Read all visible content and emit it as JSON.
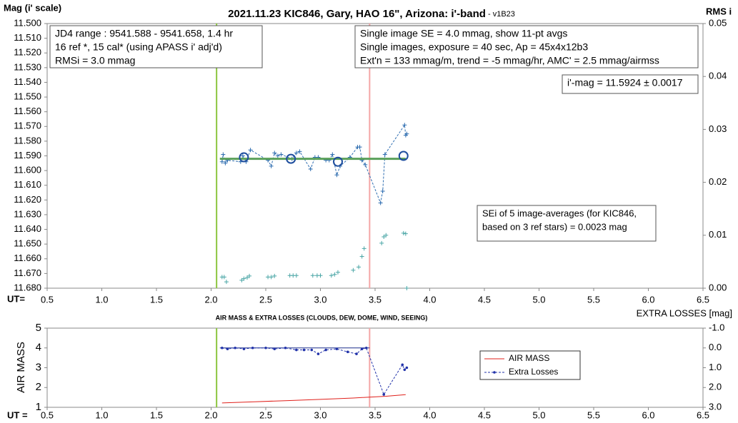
{
  "chart_data": [
    {
      "type": "line",
      "title": "2021.11.23 KIC846, Gary, HAO 16\", Arizona: i'-band",
      "subtitle": " - v1B23",
      "ylabel": "Mag (i' scale)",
      "y2label": "RMS i",
      "xlabel": "UT=",
      "xlim": [
        0.5,
        6.5
      ],
      "xticks": [
        0.5,
        {
          "value": 1,
          "label": "1.0"
        },
        1.5,
        {
          "value": 2,
          "label": "2.0"
        },
        2.5,
        {
          "value": 3,
          "label": "3.0"
        },
        3.5,
        {
          "value": 4,
          "label": "4.0"
        },
        4.5,
        {
          "value": 5,
          "label": "5.0"
        },
        5.5,
        {
          "value": 6,
          "label": "6.0"
        },
        6.5
      ],
      "ylim": [
        11.68,
        11.5
      ],
      "yticks": [
        {
          "value": 11.5,
          "label": "11.500"
        },
        {
          "value": 11.51,
          "label": "11.510"
        },
        {
          "value": 11.52,
          "label": "11.520"
        },
        {
          "value": 11.53,
          "label": "11.530"
        },
        {
          "value": 11.54,
          "label": "11.540"
        },
        {
          "value": 11.55,
          "label": "11.550"
        },
        {
          "value": 11.56,
          "label": "11.560"
        },
        {
          "value": 11.57,
          "label": "11.570"
        },
        {
          "value": 11.58,
          "label": "11.580"
        },
        {
          "value": 11.59,
          "label": "11.590"
        },
        {
          "value": 11.6,
          "label": "11.600"
        },
        {
          "value": 11.61,
          "label": "11.610"
        },
        {
          "value": 11.62,
          "label": "11.620"
        },
        {
          "value": 11.63,
          "label": "11.630"
        },
        {
          "value": 11.64,
          "label": "11.640"
        },
        {
          "value": 11.65,
          "label": "11.650"
        },
        {
          "value": 11.66,
          "label": "11.660"
        },
        {
          "value": 11.67,
          "label": "11.670"
        },
        {
          "value": 11.68,
          "label": "11.680"
        }
      ],
      "y2lim": [
        0,
        0.05
      ],
      "y2ticks": [
        {
          "value": 0,
          "label": "0.00"
        },
        0.01,
        0.02,
        0.03,
        0.04,
        0.05
      ],
      "vlines": [
        {
          "value": 2.05,
          "color": "#8cc63f"
        },
        {
          "value": 3.45,
          "color": "#f4a6a6"
        }
      ],
      "series": [
        {
          "color": "#2e6db0",
          "dash": true,
          "marker": "plus",
          "x": [
            2.1,
            2.11,
            2.13,
            2.15,
            2.27,
            2.29,
            2.32,
            2.36,
            2.52,
            2.55,
            2.58,
            2.61,
            2.64,
            2.74,
            2.78,
            2.81,
            2.91,
            2.95,
            2.98,
            3.05,
            3.08,
            3.11,
            3.15,
            3.18,
            3.27,
            3.34,
            3.36,
            3.38,
            3.41,
            3.55,
            3.57,
            3.59,
            3.77,
            3.78,
            3.79
          ],
          "values": [
            11.594,
            11.589,
            11.595,
            11.593,
            11.594,
            11.59,
            11.594,
            11.586,
            11.593,
            11.597,
            11.588,
            11.59,
            11.589,
            11.592,
            11.588,
            11.587,
            11.599,
            11.591,
            11.591,
            11.593,
            11.593,
            11.589,
            11.603,
            11.597,
            11.591,
            11.584,
            11.584,
            11.593,
            11.596,
            11.622,
            11.614,
            11.589,
            11.569,
            11.576,
            11.575
          ]
        },
        {
          "color": "#5aa05a",
          "width": 3,
          "x": [
            2.08,
            3.78
          ],
          "values": [
            11.592,
            11.592
          ]
        },
        {
          "color": "#1f4e9e",
          "line": false,
          "marker": "circle",
          "x": [
            2.3,
            2.73,
            3.16,
            3.76
          ],
          "values": [
            11.591,
            11.592,
            11.594,
            11.59
          ]
        },
        {
          "color": "#4aa6a6",
          "line": false,
          "marker": "plus",
          "axis": "y2",
          "x": [
            2.1,
            2.12,
            2.14,
            2.28,
            2.3,
            2.33,
            2.35,
            2.52,
            2.55,
            2.58,
            2.72,
            2.75,
            2.78,
            2.93,
            2.97,
            3.0,
            3.1,
            3.13,
            3.16,
            3.3,
            3.35,
            3.38,
            3.4,
            3.56,
            3.58,
            3.6,
            3.76,
            3.78,
            3.79
          ],
          "values": [
            0.0021,
            0.0021,
            0.0012,
            0.0015,
            0.0018,
            0.002,
            0.0023,
            0.0021,
            0.0021,
            0.0023,
            0.0024,
            0.0024,
            0.0024,
            0.0024,
            0.0024,
            0.0024,
            0.0024,
            0.0026,
            0.003,
            0.0034,
            0.004,
            0.006,
            0.0075,
            0.0085,
            0.0097,
            0.01,
            0.0104,
            0.0103,
            0.0
          ]
        }
      ],
      "annotations": [
        [
          "JD4 range : 9541.588 - 9541.658, 1.4  hr",
          "16 ref *, 15 cal* (using APASS i' adj'd)",
          "RMSi = 3.0 mmag"
        ],
        [
          "Single image SE = 4.0 mmag, show 11-pt avgs",
          "Single images, exposure = 40 sec, Ap = 45x4x12b3",
          "Ext'n = 133 mmag/m, trend = -5 mmag/hr, AMC' = 2.5 mmag/airmss"
        ],
        [
          "i'-mag = 11.5924 ± 0.0017"
        ],
        [
          "SEi of 5 image-averages (for KIC846,",
          "based on 3 ref stars) = 0.0023 mag"
        ]
      ]
    },
    {
      "type": "line",
      "title": "AIR MASS & EXTRA LOSSES (CLOUDS, DEW, DOME, WIND, SEEING)",
      "ylabel": "AIR MASS",
      "y2label": "EXTRA LOSSES [mag]",
      "xlabel": "UT =",
      "xlim": [
        0.5,
        6.5
      ],
      "xticks": [
        0.5,
        {
          "value": 1,
          "label": "1.0"
        },
        1.5,
        {
          "value": 2,
          "label": "2.0"
        },
        2.5,
        {
          "value": 3,
          "label": "3.0"
        },
        3.5,
        {
          "value": 4,
          "label": "4.0"
        },
        4.5,
        {
          "value": 5,
          "label": "5.0"
        },
        5.5,
        {
          "value": 6,
          "label": "6.0"
        },
        6.5
      ],
      "ylim": [
        1,
        5
      ],
      "yticks": [
        1,
        2,
        3,
        4,
        5
      ],
      "y2lim": [
        3,
        -1
      ],
      "y2ticks": [
        {
          "value": -1,
          "label": "-1.0"
        },
        {
          "value": 0,
          "label": "0.0"
        },
        {
          "value": 1,
          "label": "1.0"
        },
        {
          "value": 2,
          "label": "2.0"
        },
        {
          "value": 3,
          "label": "3.0"
        }
      ],
      "vlines": [
        {
          "value": 2.05,
          "color": "#8cc63f"
        },
        {
          "value": 3.45,
          "color": "#f4a6a6"
        }
      ],
      "series": [
        {
          "name": "AIR MASS",
          "color": "#e0201b",
          "x": [
            2.1,
            2.4,
            2.7,
            3.0,
            3.3,
            3.6,
            3.78
          ],
          "values": [
            1.22,
            1.28,
            1.34,
            1.4,
            1.47,
            1.56,
            1.64
          ]
        },
        {
          "color": "#1a2f8a",
          "axis": "y2",
          "x": [
            2.08,
            3.45
          ],
          "values": [
            0,
            0
          ]
        },
        {
          "name": "Extra Losses",
          "color": "#2233aa",
          "dash": true,
          "marker": "dot",
          "axis": "y2",
          "x": [
            2.1,
            2.15,
            2.22,
            2.3,
            2.38,
            2.5,
            2.58,
            2.68,
            2.78,
            2.85,
            2.92,
            2.98,
            3.05,
            3.15,
            3.25,
            3.33,
            3.38,
            3.42,
            3.58,
            3.75,
            3.77,
            3.79
          ],
          "values": [
            0.0,
            0.05,
            0.0,
            0.05,
            0.0,
            0.0,
            0.05,
            0.0,
            0.1,
            0.1,
            0.1,
            0.3,
            0.1,
            0.05,
            0.2,
            0.3,
            0.05,
            0.0,
            2.35,
            0.85,
            1.1,
            1.0
          ]
        }
      ]
    }
  ]
}
